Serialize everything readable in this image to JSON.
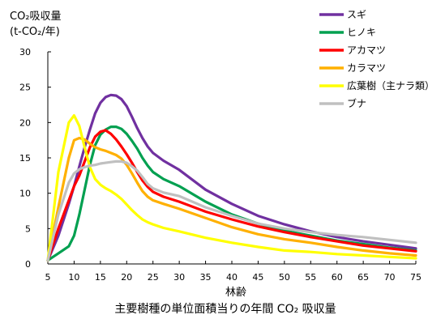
{
  "chart_data": {
    "type": "line",
    "ylabel_line1": "CO₂吸収量",
    "ylabel_line2": "(t-CO₂/年)",
    "xlabel": "林齢",
    "caption": "主要樹種の単位面積当りの年間 CO₂ 吸収量",
    "ylim": [
      0,
      30
    ],
    "xlim": [
      5,
      75
    ],
    "yticks": [
      0,
      5,
      10,
      15,
      20,
      25,
      30
    ],
    "xticks": [
      5,
      10,
      15,
      20,
      25,
      30,
      35,
      40,
      45,
      50,
      55,
      60,
      65,
      70,
      75
    ],
    "grid": false,
    "legend_position": "top-right",
    "x": [
      5,
      7,
      9,
      10,
      11,
      12,
      13,
      14,
      15,
      16,
      17,
      18,
      19,
      20,
      21,
      22,
      23,
      24,
      25,
      27,
      30,
      35,
      40,
      45,
      50,
      55,
      60,
      65,
      70,
      75
    ],
    "series": [
      {
        "name": "スギ",
        "color": "#7030a0",
        "values": [
          0.5,
          4.0,
          8.5,
          11.0,
          13.8,
          16.5,
          19.0,
          21.3,
          22.8,
          23.6,
          23.9,
          23.8,
          23.3,
          22.3,
          20.8,
          19.2,
          17.8,
          16.6,
          15.7,
          14.6,
          13.3,
          10.5,
          8.5,
          6.8,
          5.6,
          4.6,
          3.8,
          3.2,
          2.7,
          2.2
        ]
      },
      {
        "name": "ヒノキ",
        "color": "#00a050",
        "values": [
          0.5,
          1.5,
          2.5,
          4.0,
          7.0,
          10.5,
          14.0,
          16.8,
          18.3,
          19.0,
          19.4,
          19.4,
          19.1,
          18.4,
          17.4,
          16.3,
          15.0,
          13.9,
          13.0,
          12.0,
          11.0,
          8.8,
          7.0,
          5.7,
          4.7,
          4.0,
          3.3,
          2.8,
          2.3,
          1.9
        ]
      },
      {
        "name": "アカマツ",
        "color": "#ff0000",
        "values": [
          0.5,
          5.0,
          9.0,
          11.0,
          12.5,
          14.5,
          16.5,
          18.0,
          18.7,
          18.9,
          18.4,
          17.6,
          16.6,
          15.5,
          14.3,
          13.0,
          11.8,
          10.9,
          10.2,
          9.5,
          8.8,
          7.4,
          6.3,
          5.3,
          4.5,
          3.8,
          3.2,
          2.6,
          2.2,
          1.8
        ]
      },
      {
        "name": "カラマツ",
        "color": "#ffb000",
        "values": [
          0.5,
          8.0,
          15.0,
          17.5,
          17.8,
          17.6,
          17.0,
          16.5,
          16.2,
          16.0,
          15.7,
          15.4,
          14.9,
          14.0,
          12.8,
          11.5,
          10.3,
          9.5,
          9.0,
          8.5,
          7.8,
          6.5,
          5.2,
          4.2,
          3.5,
          3.0,
          2.4,
          1.9,
          1.5,
          1.2
        ]
      },
      {
        "name": "広葉樹（主ナラ類）",
        "color": "#ffff00",
        "values": [
          0.5,
          13.0,
          20.0,
          21.0,
          19.5,
          16.5,
          13.7,
          12.0,
          11.2,
          10.7,
          10.3,
          9.8,
          9.2,
          8.4,
          7.6,
          6.9,
          6.3,
          5.9,
          5.6,
          5.1,
          4.6,
          3.7,
          3.0,
          2.4,
          1.9,
          1.7,
          1.4,
          1.2,
          1.0,
          0.8
        ]
      },
      {
        "name": "ブナ",
        "color": "#c0c0c0",
        "values": [
          0.5,
          7.0,
          11.5,
          12.8,
          13.4,
          13.7,
          13.9,
          14.0,
          14.2,
          14.3,
          14.4,
          14.5,
          14.5,
          14.3,
          13.8,
          13.2,
          12.3,
          11.3,
          10.7,
          10.1,
          9.6,
          8.0,
          6.8,
          5.7,
          5.0,
          4.5,
          4.1,
          3.8,
          3.4,
          3.0
        ]
      }
    ]
  }
}
